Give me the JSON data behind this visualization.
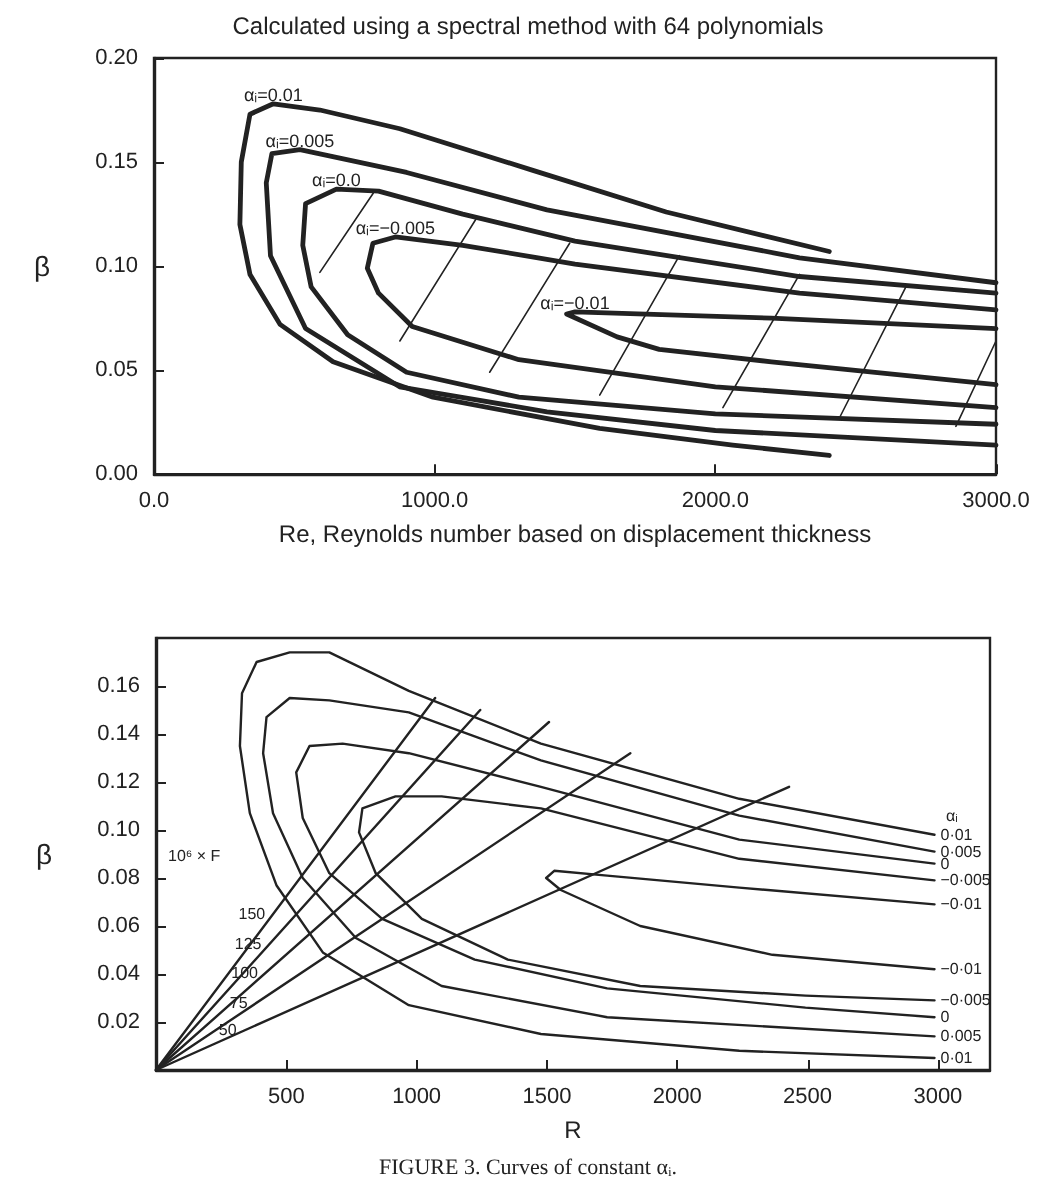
{
  "chart_data": [
    {
      "type": "line",
      "title": "Calculated using a spectral method with 64 polynomials",
      "xlabel": "Re, Reynolds number based on displacement thickness",
      "ylabel": "β",
      "marker": "none",
      "legend": false,
      "xlim": [
        0,
        3000
      ],
      "xticks": [
        {
          "value": 0,
          "label": "0.0"
        },
        {
          "value": 1000,
          "label": "1000.0"
        },
        {
          "value": 2000,
          "label": "2000.0"
        },
        {
          "value": 3000,
          "label": "3000.0"
        }
      ],
      "ylim": [
        0,
        0.2
      ],
      "yticks": [
        {
          "value": 0,
          "label": "0.00"
        },
        {
          "value": 0.05,
          "label": "0.05"
        },
        {
          "value": 0.1,
          "label": "0.10"
        },
        {
          "value": 0.15,
          "label": "0.15"
        },
        {
          "value": 0.2,
          "label": "0.20"
        }
      ],
      "series": [
        {
          "name": "αᵢ=0.01",
          "color": "#222222",
          "x": [
            2406,
            1825,
            1350,
            876,
            591,
            425,
            342,
            311,
            306,
            342,
            449,
            638,
            994,
            1588,
            2062,
            2406
          ],
          "values": [
            0.107,
            0.126,
            0.146,
            0.166,
            0.175,
            0.178,
            0.173,
            0.15,
            0.12,
            0.096,
            0.072,
            0.054,
            0.037,
            0.022,
            0.014,
            0.009
          ]
        },
        {
          "name": "αᵢ=0.005",
          "color": "#222222",
          "x": [
            3000,
            2300,
            1400,
            900,
            520,
            420,
            400,
            415,
            540,
            875,
            1400,
            2000,
            3000
          ],
          "values": [
            0.092,
            0.104,
            0.127,
            0.145,
            0.156,
            0.154,
            0.14,
            0.105,
            0.07,
            0.042,
            0.03,
            0.021,
            0.014
          ]
        },
        {
          "name": "αᵢ=0.0",
          "color": "#222222",
          "x": [
            3000,
            2300,
            1500,
            1100,
            800,
            650,
            540,
            530,
            560,
            690,
            900,
            1300,
            2000,
            3000
          ],
          "values": [
            0.087,
            0.095,
            0.112,
            0.125,
            0.136,
            0.137,
            0.13,
            0.11,
            0.09,
            0.067,
            0.049,
            0.037,
            0.029,
            0.024
          ]
        },
        {
          "name": "αᵢ=−0.005",
          "color": "#222222",
          "x": [
            3000,
            2300,
            1500,
            1100,
            860,
            780,
            760,
            800,
            920,
            1300,
            2000,
            3000
          ],
          "values": [
            0.079,
            0.087,
            0.101,
            0.11,
            0.114,
            0.111,
            0.099,
            0.087,
            0.071,
            0.055,
            0.042,
            0.032
          ]
        },
        {
          "name": "αᵢ=−0.01",
          "color": "#222222",
          "x": [
            3000,
            2200,
            1500,
            1470,
            1650,
            1800,
            2200,
            3000
          ],
          "values": [
            0.07,
            0.075,
            0.078,
            0.077,
            0.066,
            0.06,
            0.054,
            0.043
          ]
        },
        {
          "color": "#222222",
          "x": [
            591,
            781
          ],
          "values": [
            0.097,
            0.135
          ]
        },
        {
          "color": "#222222",
          "x": [
            876,
            1149
          ],
          "values": [
            0.064,
            0.123
          ]
        },
        {
          "color": "#222222",
          "x": [
            1196,
            1481
          ],
          "values": [
            0.049,
            0.111
          ]
        },
        {
          "color": "#222222",
          "x": [
            1588,
            1872
          ],
          "values": [
            0.038,
            0.105
          ]
        },
        {
          "color": "#222222",
          "x": [
            2027,
            2300
          ],
          "values": [
            0.032,
            0.096
          ]
        },
        {
          "color": "#222222",
          "x": [
            2442,
            2679
          ],
          "values": [
            0.027,
            0.09
          ]
        },
        {
          "color": "#222222",
          "x": [
            2857,
            3000
          ],
          "values": [
            0.023,
            0.064
          ]
        }
      ]
    },
    {
      "type": "line",
      "xlabel": "R",
      "ylabel": "β",
      "marker": "none",
      "legend": false,
      "annotations": [
        "10⁶ × F",
        "αᵢ",
        "FIGURE 3. Curves of constant αᵢ."
      ],
      "xlim": [
        0,
        3200
      ],
      "xticks": [
        500,
        1000,
        1500,
        2000,
        2500,
        3000
      ],
      "ylim": [
        0,
        0.18
      ],
      "yticks": [
        0.02,
        0.04,
        0.06,
        0.08,
        {
          "value": 0.1,
          "label": "0.10"
        },
        0.12,
        0.14,
        0.16
      ],
      "series": [
        {
          "name": "0·01",
          "color": "#222222",
          "x": [
            2987,
            2238,
            1477,
            970,
            665,
            513,
            386,
            330,
            322,
            360,
            462,
            640,
            970,
            1477,
            2238,
            2987
          ],
          "values": [
            0.098,
            0.113,
            0.136,
            0.158,
            0.174,
            0.174,
            0.17,
            0.157,
            0.135,
            0.107,
            0.077,
            0.049,
            0.027,
            0.015,
            0.008,
            0.005
          ]
        },
        {
          "name": "0·005",
          "color": "#222222",
          "x": [
            2987,
            2238,
            1477,
            970,
            665,
            513,
            424,
            411,
            449,
            563,
            767,
            1096,
            1731,
            2987
          ],
          "values": [
            0.091,
            0.106,
            0.129,
            0.149,
            0.154,
            0.155,
            0.147,
            0.132,
            0.107,
            0.08,
            0.055,
            0.035,
            0.022,
            0.014
          ]
        },
        {
          "name": "0",
          "color": "#222222",
          "x": [
            2987,
            2238,
            1477,
            970,
            716,
            589,
            538,
            563,
            665,
            868,
            1223,
            1731,
            2492,
            2987
          ],
          "values": [
            0.086,
            0.096,
            0.118,
            0.132,
            0.136,
            0.135,
            0.124,
            0.105,
            0.082,
            0.063,
            0.046,
            0.034,
            0.026,
            0.022
          ]
        },
        {
          "name": "−0·005",
          "color": "#222222",
          "x": [
            2987,
            2238,
            1477,
            1096,
            919,
            792,
            779,
            843,
            1020,
            1350,
            1858,
            2492,
            2987
          ],
          "values": [
            0.079,
            0.088,
            0.109,
            0.114,
            0.114,
            0.109,
            0.099,
            0.082,
            0.063,
            0.046,
            0.035,
            0.031,
            0.029
          ]
        },
        {
          "name": "−0·01",
          "color": "#222222",
          "x": [
            2987,
            2238,
            1731,
            1528,
            1497,
            1553,
            1858,
            2365,
            2987
          ],
          "values": [
            0.069,
            0.076,
            0.081,
            0.083,
            0.08,
            0.075,
            0.06,
            0.048,
            0.042
          ]
        },
        {
          "name": "150",
          "color": "#222222",
          "x": [
            0,
            1071
          ],
          "values": [
            0,
            0.155
          ]
        },
        {
          "name": "125",
          "color": "#222222",
          "x": [
            0,
            1244
          ],
          "values": [
            0,
            0.15
          ]
        },
        {
          "name": "100",
          "color": "#222222",
          "x": [
            0,
            1508
          ],
          "values": [
            0,
            0.145
          ]
        },
        {
          "name": "75",
          "color": "#222222",
          "x": [
            0,
            1820
          ],
          "values": [
            0,
            0.132
          ]
        },
        {
          "name": "50",
          "color": "#222222",
          "x": [
            0,
            2429
          ],
          "values": [
            0,
            0.118
          ]
        }
      ]
    }
  ]
}
